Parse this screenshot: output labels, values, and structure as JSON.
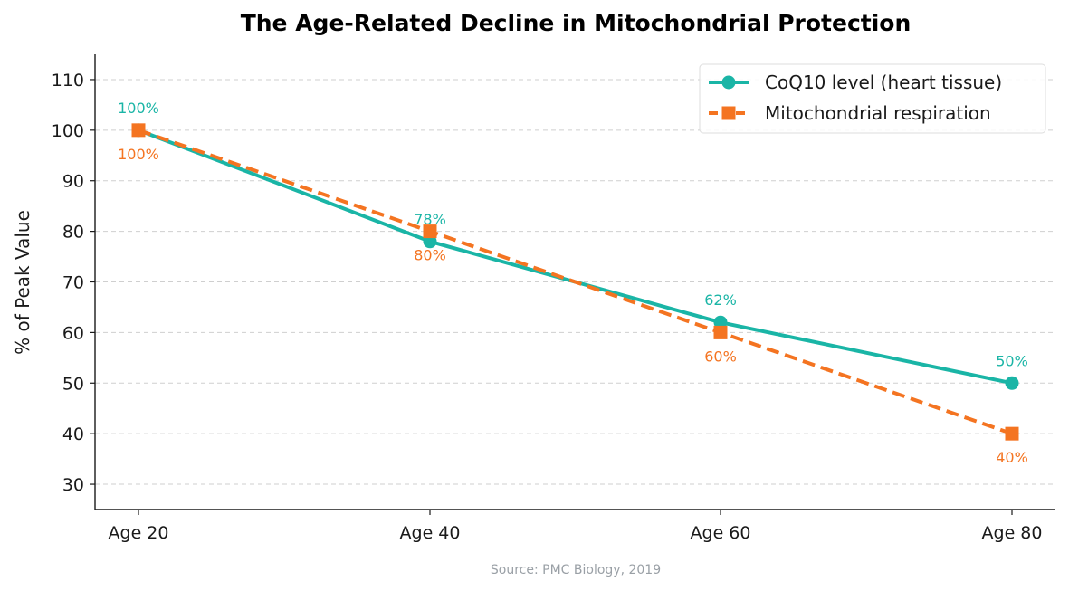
{
  "chart_data": {
    "type": "line",
    "title": "The Age-Related Decline in Mitochondrial Protection",
    "xlabel": "",
    "ylabel": "% of Peak Value",
    "categories": [
      "Age 20",
      "Age 40",
      "Age 60",
      "Age 80"
    ],
    "ylim": [
      25,
      115
    ],
    "yticks": [
      30,
      40,
      50,
      60,
      70,
      80,
      90,
      100,
      110
    ],
    "grid": "horizontal-dashed",
    "legend_position": "top-right",
    "series": [
      {
        "name": "CoQ10 level (heart tissue)",
        "values": [
          100,
          78,
          62,
          50
        ],
        "labels": [
          "100%",
          "78%",
          "62%",
          "50%"
        ],
        "color": "#1ab5a6",
        "line_style": "solid",
        "marker": "circle"
      },
      {
        "name": "Mitochondrial respiration",
        "values": [
          100,
          80,
          60,
          40
        ],
        "labels": [
          "100%",
          "80%",
          "60%",
          "40%"
        ],
        "color": "#f47421",
        "line_style": "dashed",
        "marker": "square"
      }
    ],
    "source": "Source: PMC Biology, 2019"
  }
}
